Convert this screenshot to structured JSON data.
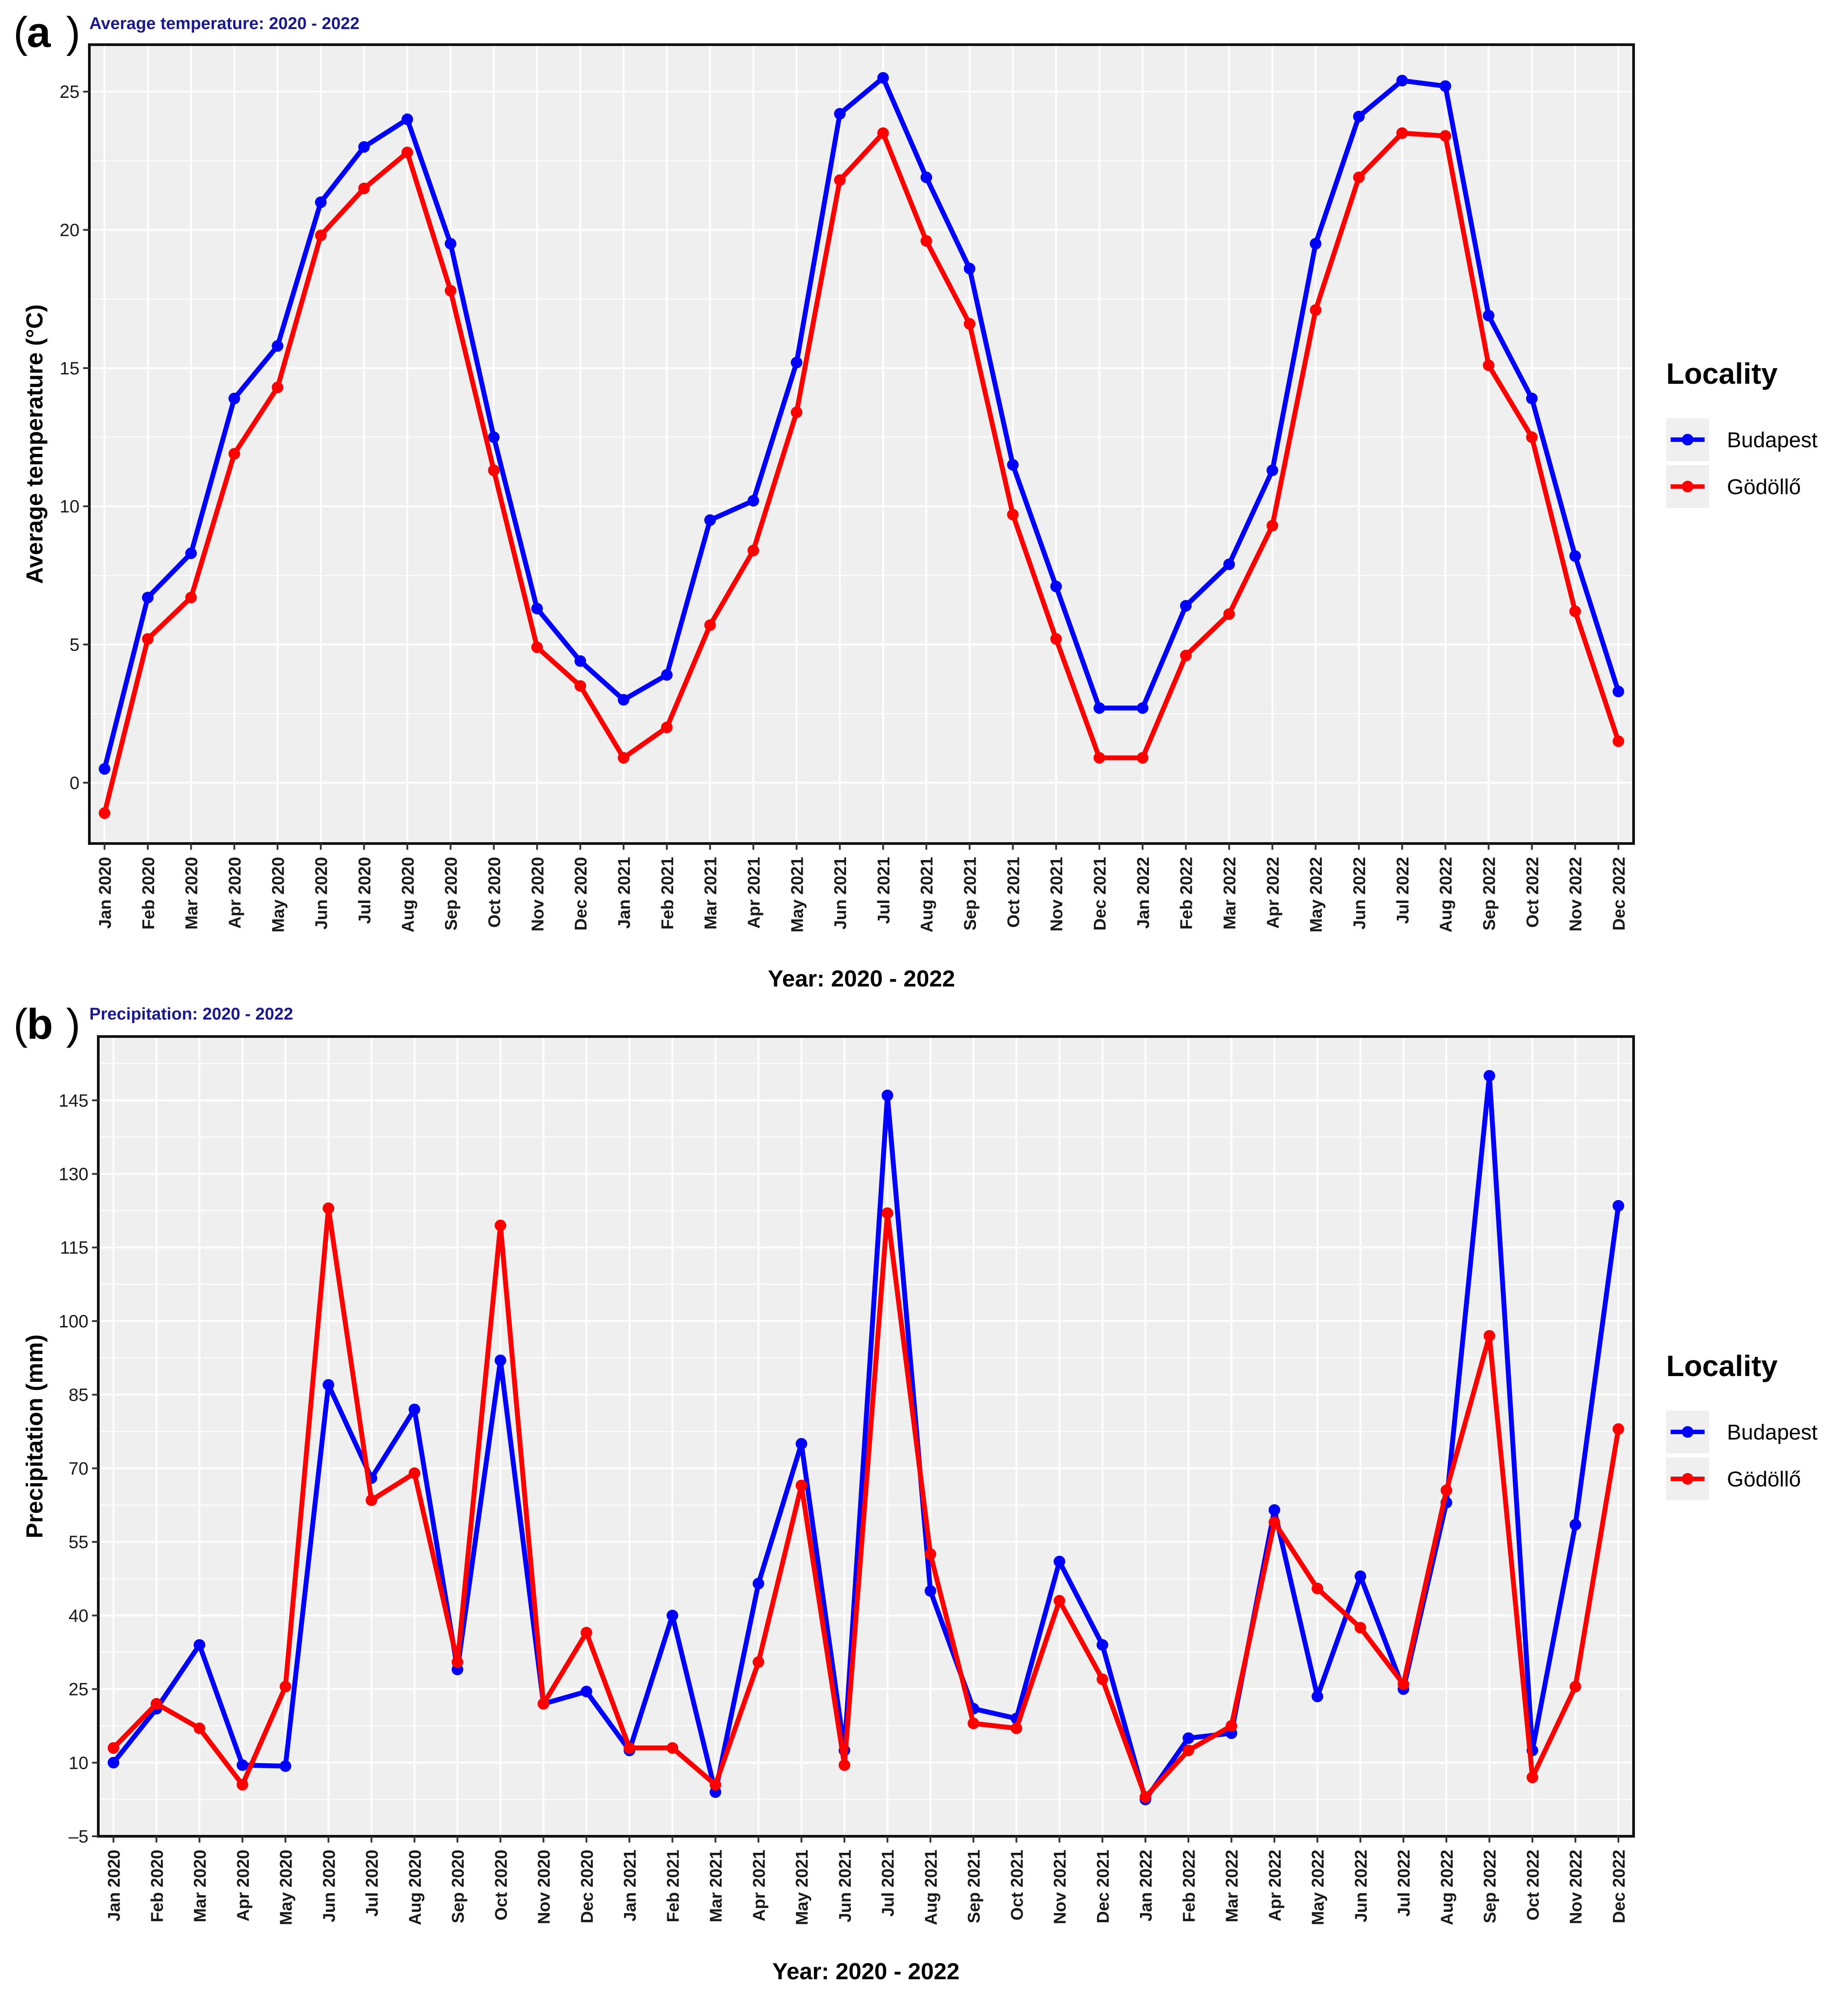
{
  "chart_data": [
    {
      "type": "line",
      "panel_label": "a",
      "title": "Average temperature: 2020 - 2022",
      "xlabel": "Year: 2020 - 2022",
      "ylabel": "Average temperature (°C)",
      "ylim": [
        -2.2,
        26.7
      ],
      "yticks": [
        0,
        5,
        10,
        15,
        20,
        25
      ],
      "grid": true,
      "legend": {
        "title": "Locality",
        "position": "right"
      },
      "categories": [
        "Jan 2020",
        "Feb 2020",
        "Mar 2020",
        "Apr 2020",
        "May 2020",
        "Jun 2020",
        "Jul 2020",
        "Aug 2020",
        "Sep 2020",
        "Oct 2020",
        "Nov 2020",
        "Dec 2020",
        "Jan 2021",
        "Feb 2021",
        "Mar 2021",
        "Apr 2021",
        "May 2021",
        "Jun 2021",
        "Jul 2021",
        "Aug 2021",
        "Sep 2021",
        "Oct 2021",
        "Nov 2021",
        "Dec 2021",
        "Jan 2022",
        "Feb 2022",
        "Mar 2022",
        "Apr 2022",
        "May 2022",
        "Jun 2022",
        "Jul 2022",
        "Aug 2022",
        "Sep 2022",
        "Oct 2022",
        "Nov 2022",
        "Dec 2022"
      ],
      "series": [
        {
          "name": "Budapest",
          "color": "#0000ff",
          "values": [
            0.5,
            6.7,
            8.3,
            13.9,
            15.8,
            21.0,
            23.0,
            24.0,
            19.5,
            12.5,
            6.3,
            4.4,
            3.0,
            3.9,
            9.5,
            10.2,
            15.2,
            24.2,
            25.5,
            21.9,
            18.6,
            11.5,
            7.1,
            2.7,
            2.7,
            6.4,
            7.9,
            11.3,
            19.5,
            24.1,
            25.4,
            25.2,
            16.9,
            13.9,
            8.2,
            3.3
          ]
        },
        {
          "name": "Gödöllő",
          "color": "#ff0000",
          "values": [
            -1.1,
            5.2,
            6.7,
            11.9,
            14.3,
            19.8,
            21.5,
            22.8,
            17.8,
            11.3,
            4.9,
            3.5,
            0.9,
            2.0,
            5.7,
            8.4,
            13.4,
            21.8,
            23.5,
            19.6,
            16.6,
            9.7,
            5.2,
            0.9,
            0.9,
            4.6,
            6.1,
            9.3,
            17.1,
            21.9,
            23.5,
            23.4,
            15.1,
            12.5,
            6.2,
            1.5
          ]
        }
      ]
    },
    {
      "type": "line",
      "panel_label": "b",
      "title": "Precipitation: 2020 - 2022",
      "xlabel": "Year: 2020 - 2022",
      "ylabel": "Precipitation (mm)",
      "ylim": [
        -5,
        158
      ],
      "yticks": [
        -5,
        10,
        25,
        40,
        55,
        70,
        85,
        100,
        115,
        130,
        145
      ],
      "grid": true,
      "legend": {
        "title": "Locality",
        "position": "right"
      },
      "categories": [
        "Jan 2020",
        "Feb 2020",
        "Mar 2020",
        "Apr 2020",
        "May 2020",
        "Jun 2020",
        "Jul 2020",
        "Aug 2020",
        "Sep 2020",
        "Oct 2020",
        "Nov 2020",
        "Dec 2020",
        "Jan 2021",
        "Feb 2021",
        "Mar 2021",
        "Apr 2021",
        "May 2021",
        "Jun 2021",
        "Jul 2021",
        "Aug 2021",
        "Sep 2021",
        "Oct 2021",
        "Nov 2021",
        "Dec 2021",
        "Jan 2022",
        "Feb 2022",
        "Mar 2022",
        "Apr 2022",
        "May 2022",
        "Jun 2022",
        "Jul 2022",
        "Aug 2022",
        "Sep 2022",
        "Oct 2022",
        "Nov 2022",
        "Dec 2022"
      ],
      "series": [
        {
          "name": "Budapest",
          "color": "#0000ff",
          "values": [
            10,
            21,
            34,
            9.5,
            9.3,
            87,
            68,
            82,
            29,
            92,
            22,
            24.5,
            12.5,
            40,
            4,
            46.5,
            75,
            12.5,
            146,
            45,
            21,
            19,
            51,
            34,
            2.5,
            15,
            16,
            61.5,
            23.5,
            48,
            25,
            63,
            150,
            12.5,
            58.5,
            123.5
          ]
        },
        {
          "name": "Gödöllő",
          "color": "#ff0000",
          "values": [
            13,
            22,
            17,
            5.5,
            25.5,
            123,
            63.5,
            69,
            30.5,
            119.5,
            22,
            36.5,
            13,
            13,
            5.5,
            30.5,
            66.5,
            9.5,
            122,
            52.5,
            18,
            17,
            43,
            27,
            3,
            12.5,
            17.5,
            59,
            45.5,
            37.5,
            26,
            65.5,
            97,
            7,
            25.5,
            78
          ]
        }
      ]
    }
  ]
}
